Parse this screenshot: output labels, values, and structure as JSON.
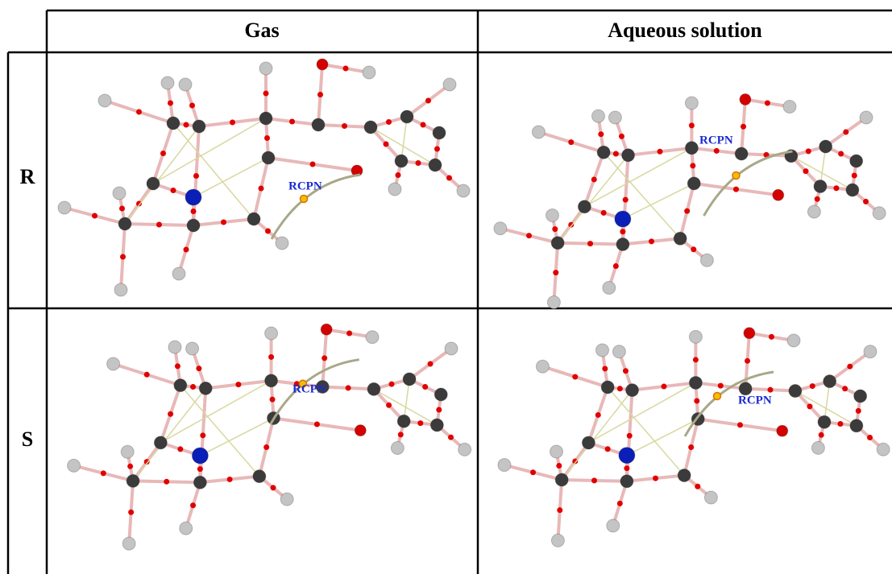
{
  "table": {
    "header": [
      "Gas",
      "Aqueous solution"
    ],
    "rows": [
      {
        "label": "R",
        "annotations": [
          "RCPN",
          "RCPN"
        ]
      },
      {
        "label": "S",
        "annotations": [
          "RCPN",
          "RCPN"
        ]
      }
    ]
  }
}
